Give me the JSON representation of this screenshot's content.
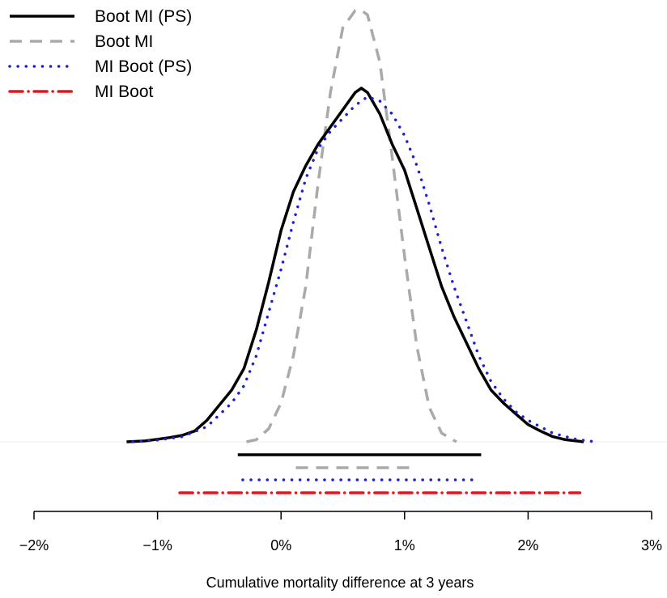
{
  "chart_data": {
    "type": "line",
    "title": "",
    "xlabel": "Cumulative mortality difference at 3 years",
    "ylabel": "",
    "xlim": [
      -2,
      3
    ],
    "ylim": [
      0,
      1
    ],
    "xticks": [
      -2,
      -1,
      0,
      1,
      2,
      3
    ],
    "xtick_labels": [
      "−2%",
      "−1%",
      "0%",
      "1%",
      "2%",
      "3%"
    ],
    "legend_position": "top-left",
    "grid": false,
    "series": [
      {
        "name": "Boot MI (PS)",
        "color": "#000000",
        "dash": "solid",
        "density_x": [
          -1.25,
          -1.1,
          -1.0,
          -0.9,
          -0.8,
          -0.7,
          -0.6,
          -0.5,
          -0.4,
          -0.3,
          -0.2,
          -0.1,
          0.0,
          0.1,
          0.2,
          0.3,
          0.4,
          0.5,
          0.6,
          0.65,
          0.7,
          0.8,
          0.9,
          1.0,
          1.1,
          1.2,
          1.3,
          1.4,
          1.5,
          1.6,
          1.7,
          1.8,
          1.9,
          2.0,
          2.1,
          2.2,
          2.3,
          2.45
        ],
        "density_y": [
          0.0,
          0.002,
          0.006,
          0.01,
          0.015,
          0.025,
          0.05,
          0.085,
          0.12,
          0.17,
          0.26,
          0.37,
          0.49,
          0.58,
          0.64,
          0.69,
          0.73,
          0.77,
          0.81,
          0.82,
          0.81,
          0.76,
          0.69,
          0.63,
          0.54,
          0.45,
          0.36,
          0.29,
          0.23,
          0.17,
          0.12,
          0.09,
          0.065,
          0.04,
          0.025,
          0.012,
          0.005,
          0.0
        ],
        "interval": [
          -0.35,
          1.62
        ]
      },
      {
        "name": "Boot MI",
        "color": "#aaaaaa",
        "dash": "dashed",
        "density_x": [
          -0.28,
          -0.2,
          -0.1,
          0.0,
          0.1,
          0.2,
          0.3,
          0.4,
          0.5,
          0.6,
          0.65,
          0.7,
          0.8,
          0.9,
          1.0,
          1.1,
          1.2,
          1.3,
          1.42
        ],
        "density_y": [
          0.0,
          0.005,
          0.03,
          0.09,
          0.2,
          0.36,
          0.6,
          0.81,
          0.96,
          1.0,
          1.0,
          0.99,
          0.88,
          0.66,
          0.43,
          0.22,
          0.08,
          0.02,
          0.0
        ],
        "interval": [
          0.12,
          1.05
        ]
      },
      {
        "name": "MI Boot (PS)",
        "color": "#1f1fd6",
        "dash": "dotted",
        "density_x": [
          -1.2,
          -1.0,
          -0.8,
          -0.6,
          -0.4,
          -0.3,
          -0.2,
          -0.1,
          0.0,
          0.1,
          0.2,
          0.3,
          0.4,
          0.5,
          0.6,
          0.7,
          0.8,
          0.9,
          1.0,
          1.1,
          1.2,
          1.3,
          1.4,
          1.5,
          1.6,
          1.7,
          1.8,
          1.9,
          2.0,
          2.2,
          2.4,
          2.55
        ],
        "density_y": [
          0.0,
          0.004,
          0.012,
          0.035,
          0.09,
          0.13,
          0.2,
          0.3,
          0.4,
          0.51,
          0.61,
          0.68,
          0.72,
          0.75,
          0.78,
          0.8,
          0.79,
          0.76,
          0.71,
          0.64,
          0.55,
          0.45,
          0.36,
          0.28,
          0.2,
          0.14,
          0.1,
          0.07,
          0.05,
          0.02,
          0.005,
          0.0
        ],
        "interval": [
          -0.31,
          1.57
        ]
      },
      {
        "name": "MI Boot",
        "color": "#e8141d",
        "dash": "dashdot",
        "density_x": [],
        "density_y": [],
        "interval": [
          -0.82,
          2.42
        ]
      }
    ]
  }
}
